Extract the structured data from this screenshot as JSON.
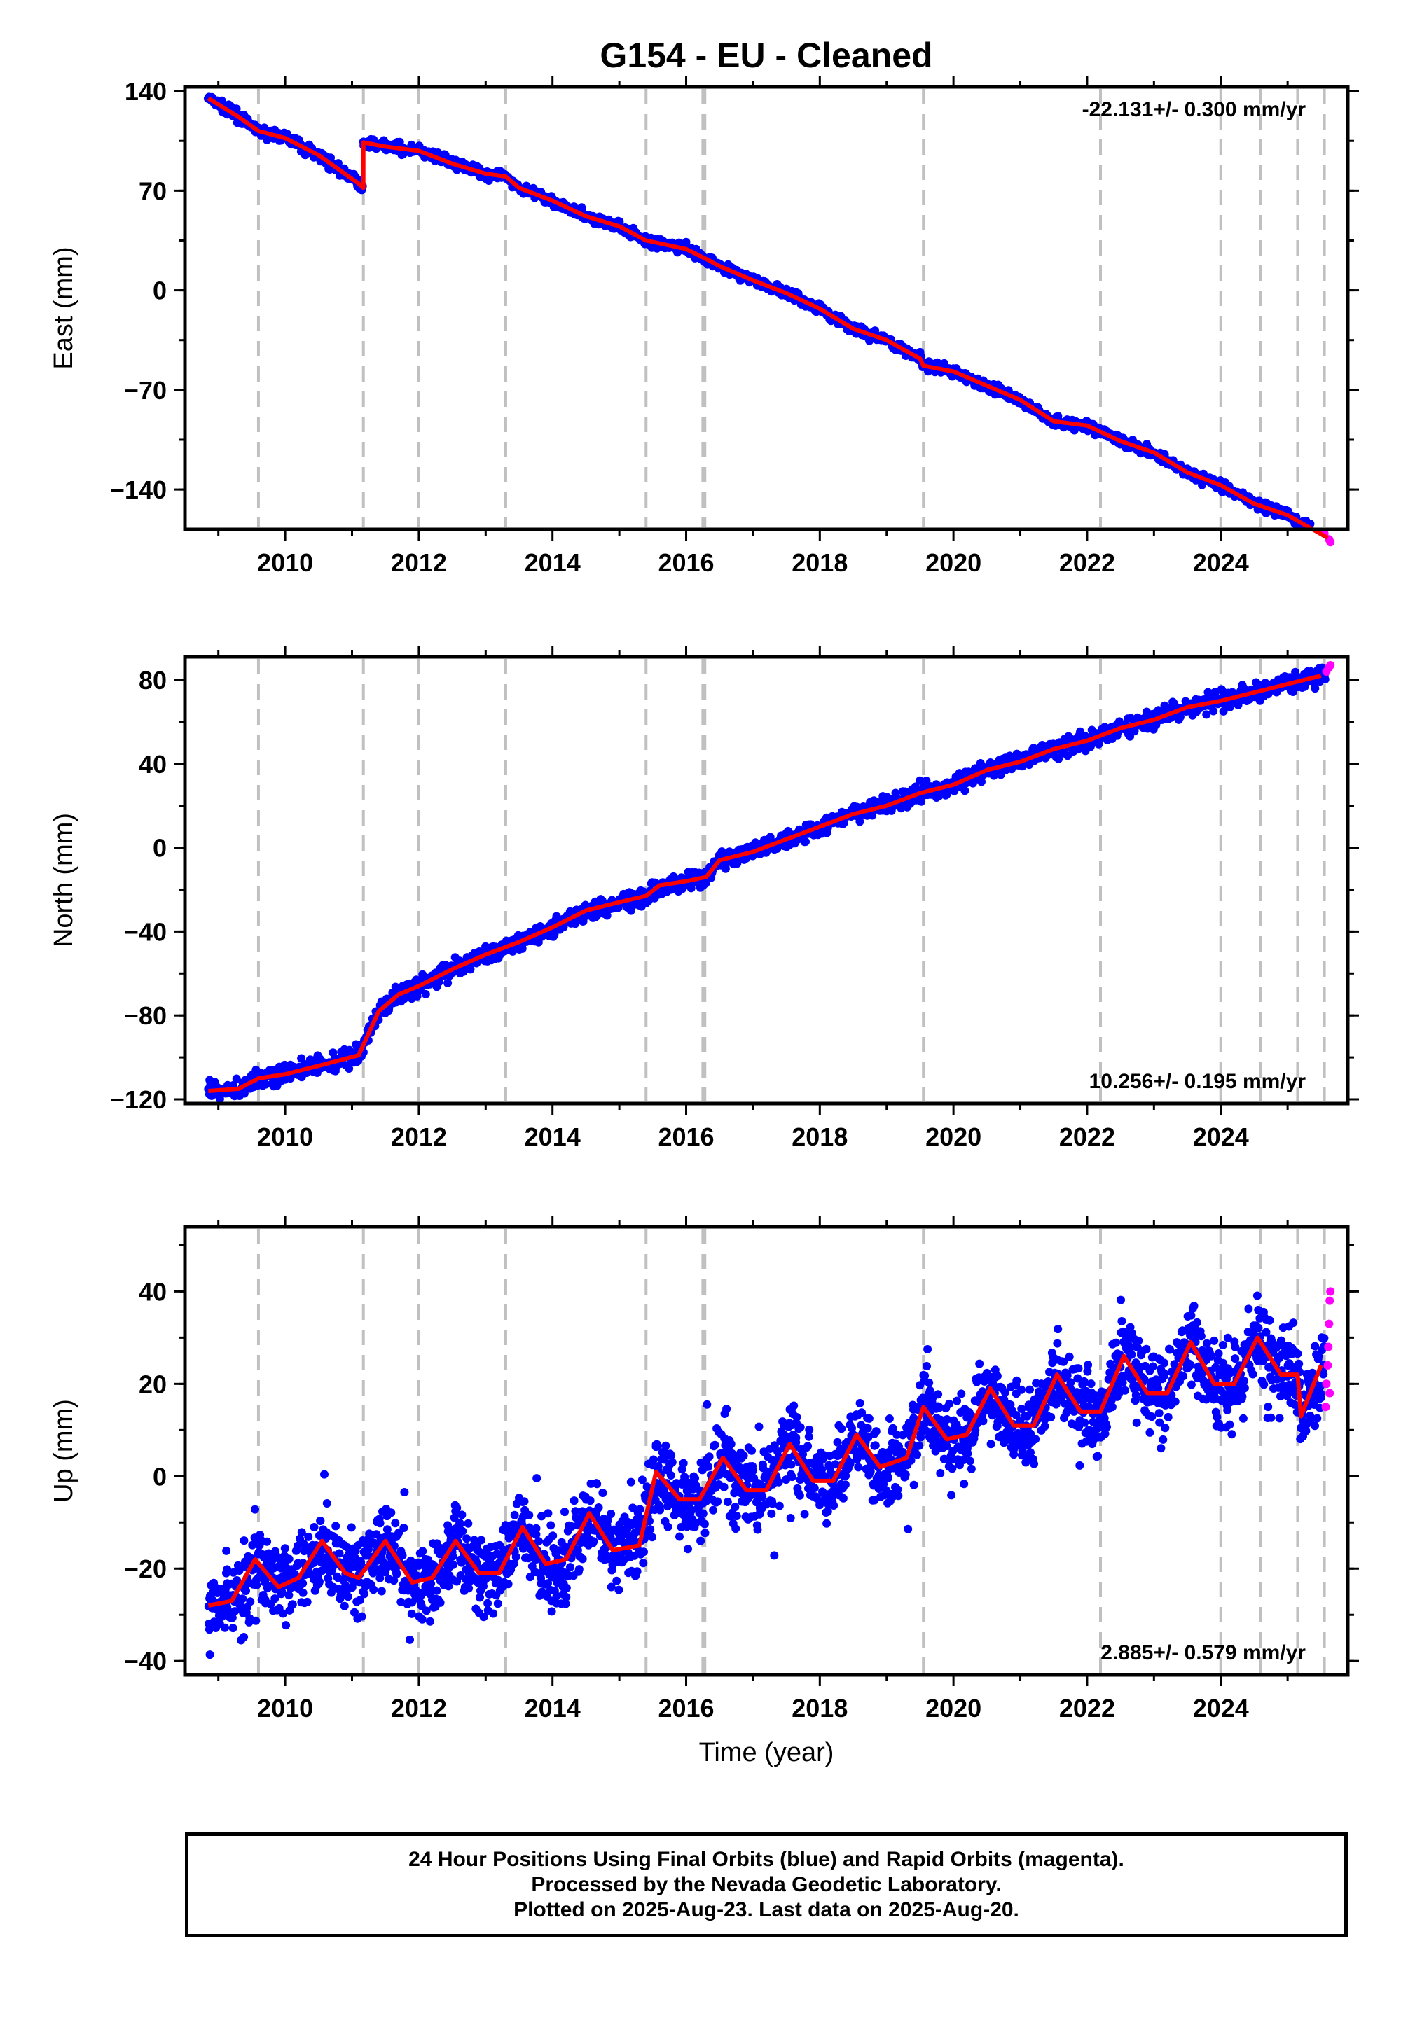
{
  "title": "G154  - EU - Cleaned",
  "x_axis_label": "Time (year)",
  "colors": {
    "final_orbits": "#0000ff",
    "rapid_orbits": "#ff00ff",
    "model": "#ff0000",
    "events": "#c0c0c0"
  },
  "footer": {
    "line1": "24 Hour Positions Using Final Orbits (blue) and Rapid Orbits (magenta).",
    "line2": "Processed by the Nevada Geodetic Laboratory.",
    "line3": "Plotted on 2025-Aug-23. Last data on 2025-Aug-20."
  },
  "chart_data": [
    {
      "type": "scatter",
      "ylabel": "East (mm)",
      "rate_label": "-22.131+/- 0.300 mm/yr",
      "rate_position": "top-right",
      "xlim": [
        2008.5,
        2025.9
      ],
      "ylim": [
        -168,
        143
      ],
      "x_ticks": [
        2010,
        2012,
        2014,
        2016,
        2018,
        2020,
        2022,
        2024
      ],
      "y_ticks": [
        140,
        70,
        0,
        -70,
        -140
      ],
      "y_tick_labels": [
        "140",
        "70",
        "0",
        "−70",
        "−140"
      ],
      "event_lines": [
        2009.6,
        2011.17,
        2012.0,
        2013.3,
        2015.4,
        2016.25,
        2016.28,
        2019.55,
        2022.2,
        2024.0,
        2024.6,
        2025.15,
        2025.55
      ],
      "series": [
        {
          "values": [
            [
              2008.85,
              135
            ],
            [
              2009.3,
              122
            ],
            [
              2009.6,
              112
            ],
            [
              2010.0,
              107
            ],
            [
              2010.5,
              95
            ],
            [
              2011.1,
              75
            ],
            [
              2011.17,
              72
            ],
            [
              2011.17,
              104
            ],
            [
              2011.5,
              101
            ],
            [
              2012.0,
              98
            ],
            [
              2012.5,
              89
            ],
            [
              2013.0,
              82
            ],
            [
              2013.3,
              80
            ],
            [
              2013.5,
              72
            ],
            [
              2014.0,
              63
            ],
            [
              2014.5,
              52
            ],
            [
              2015.0,
              45
            ],
            [
              2015.4,
              35
            ],
            [
              2015.6,
              33
            ],
            [
              2016.0,
              29
            ],
            [
              2016.3,
              22
            ],
            [
              2016.5,
              17
            ],
            [
              2017.0,
              7
            ],
            [
              2017.5,
              -2
            ],
            [
              2018.0,
              -13
            ],
            [
              2018.5,
              -27
            ],
            [
              2019.0,
              -35
            ],
            [
              2019.5,
              -48
            ],
            [
              2019.55,
              -53
            ],
            [
              2020.0,
              -57
            ],
            [
              2020.5,
              -67
            ],
            [
              2021.0,
              -77
            ],
            [
              2021.5,
              -92
            ],
            [
              2022.0,
              -95
            ],
            [
              2022.5,
              -106
            ],
            [
              2023.0,
              -114
            ],
            [
              2023.5,
              -128
            ],
            [
              2024.0,
              -137
            ],
            [
              2024.5,
              -150
            ],
            [
              2025.0,
              -158
            ],
            [
              2025.6,
              -174
            ]
          ]
        },
        {
          "values": [
            [
              2025.55,
              -171
            ],
            [
              2025.62,
              -175
            ],
            [
              2025.64,
              -177
            ]
          ]
        }
      ]
    },
    {
      "type": "scatter",
      "ylabel": "North (mm)",
      "rate_label": "10.256+/- 0.195 mm/yr",
      "rate_position": "bottom-right",
      "xlim": [
        2008.5,
        2025.9
      ],
      "ylim": [
        -122,
        91
      ],
      "x_ticks": [
        2010,
        2012,
        2014,
        2016,
        2018,
        2020,
        2022,
        2024
      ],
      "y_ticks": [
        80,
        40,
        0,
        -40,
        -80,
        -120
      ],
      "y_tick_labels": [
        "80",
        "40",
        "0",
        "−40",
        "−80",
        "−120"
      ],
      "event_lines": [
        2009.6,
        2011.17,
        2012.0,
        2013.3,
        2015.4,
        2016.25,
        2016.28,
        2019.55,
        2022.2,
        2024.0,
        2024.6,
        2025.15,
        2025.55
      ],
      "series": [
        {
          "values": [
            [
              2008.85,
              -116
            ],
            [
              2009.3,
              -115
            ],
            [
              2009.6,
              -110
            ],
            [
              2010.0,
              -108
            ],
            [
              2010.5,
              -104
            ],
            [
              2011.1,
              -99
            ],
            [
              2011.17,
              -94
            ],
            [
              2011.4,
              -78
            ],
            [
              2011.7,
              -70
            ],
            [
              2012.0,
              -66
            ],
            [
              2012.5,
              -58
            ],
            [
              2013.0,
              -51
            ],
            [
              2013.5,
              -45
            ],
            [
              2014.0,
              -38
            ],
            [
              2014.5,
              -30
            ],
            [
              2015.0,
              -26
            ],
            [
              2015.4,
              -23
            ],
            [
              2015.6,
              -18
            ],
            [
              2016.0,
              -16
            ],
            [
              2016.3,
              -14
            ],
            [
              2016.5,
              -6
            ],
            [
              2017.0,
              -2
            ],
            [
              2017.5,
              4
            ],
            [
              2018.0,
              10
            ],
            [
              2018.5,
              16
            ],
            [
              2019.0,
              20
            ],
            [
              2019.5,
              26
            ],
            [
              2020.0,
              30
            ],
            [
              2020.5,
              37
            ],
            [
              2021.0,
              41
            ],
            [
              2021.5,
              47
            ],
            [
              2022.0,
              51
            ],
            [
              2022.5,
              57
            ],
            [
              2023.0,
              61
            ],
            [
              2023.5,
              67
            ],
            [
              2024.0,
              70
            ],
            [
              2024.5,
              74
            ],
            [
              2025.0,
              78
            ],
            [
              2025.5,
              82
            ]
          ]
        },
        {
          "values": [
            [
              2025.58,
              84
            ],
            [
              2025.62,
              86
            ],
            [
              2025.64,
              87
            ]
          ]
        }
      ]
    },
    {
      "type": "scatter",
      "ylabel": "Up (mm)",
      "rate_label": "2.885+/- 0.579 mm/yr",
      "rate_position": "bottom-right",
      "xlim": [
        2008.5,
        2025.9
      ],
      "ylim": [
        -43,
        54
      ],
      "x_ticks": [
        2010,
        2012,
        2014,
        2016,
        2018,
        2020,
        2022,
        2024
      ],
      "y_ticks": [
        40,
        20,
        0,
        -20,
        -40
      ],
      "y_tick_labels": [
        "40",
        "20",
        "0",
        "−20",
        "−40"
      ],
      "event_lines": [
        2009.6,
        2011.17,
        2012.0,
        2013.3,
        2015.4,
        2016.25,
        2016.28,
        2019.55,
        2022.2,
        2024.0,
        2024.6,
        2025.15,
        2025.55
      ],
      "series": [
        {
          "values": [
            [
              2008.85,
              -28
            ],
            [
              2009.2,
              -27
            ],
            [
              2009.55,
              -18
            ],
            [
              2009.9,
              -24
            ],
            [
              2010.2,
              -22
            ],
            [
              2010.55,
              -14
            ],
            [
              2010.9,
              -21
            ],
            [
              2011.1,
              -22
            ],
            [
              2011.5,
              -14
            ],
            [
              2011.9,
              -23
            ],
            [
              2012.2,
              -22
            ],
            [
              2012.55,
              -14
            ],
            [
              2012.9,
              -21
            ],
            [
              2013.2,
              -21
            ],
            [
              2013.55,
              -11
            ],
            [
              2013.9,
              -19
            ],
            [
              2014.2,
              -18
            ],
            [
              2014.55,
              -8
            ],
            [
              2014.9,
              -16
            ],
            [
              2015.3,
              -15
            ],
            [
              2015.55,
              1
            ],
            [
              2015.9,
              -5
            ],
            [
              2016.2,
              -5
            ],
            [
              2016.55,
              4
            ],
            [
              2016.9,
              -3
            ],
            [
              2017.2,
              -3
            ],
            [
              2017.55,
              7
            ],
            [
              2017.9,
              -1
            ],
            [
              2018.2,
              -1
            ],
            [
              2018.55,
              9
            ],
            [
              2018.9,
              2
            ],
            [
              2019.3,
              4
            ],
            [
              2019.55,
              15
            ],
            [
              2019.9,
              8
            ],
            [
              2020.2,
              9
            ],
            [
              2020.55,
              19
            ],
            [
              2020.9,
              11
            ],
            [
              2021.2,
              11
            ],
            [
              2021.55,
              22
            ],
            [
              2021.9,
              14
            ],
            [
              2022.2,
              14
            ],
            [
              2022.55,
              26
            ],
            [
              2022.9,
              18
            ],
            [
              2023.2,
              18
            ],
            [
              2023.55,
              29
            ],
            [
              2023.9,
              20
            ],
            [
              2024.2,
              20
            ],
            [
              2024.55,
              30
            ],
            [
              2024.9,
              22
            ],
            [
              2025.15,
              22
            ],
            [
              2025.2,
              13
            ],
            [
              2025.5,
              24
            ]
          ]
        },
        {
          "values": [
            [
              2025.57,
              15
            ],
            [
              2025.58,
              20
            ],
            [
              2025.6,
              24
            ],
            [
              2025.61,
              28
            ],
            [
              2025.62,
              33
            ],
            [
              2025.63,
              38
            ],
            [
              2025.64,
              40
            ],
            [
              2025.63,
              18
            ]
          ]
        }
      ]
    }
  ]
}
